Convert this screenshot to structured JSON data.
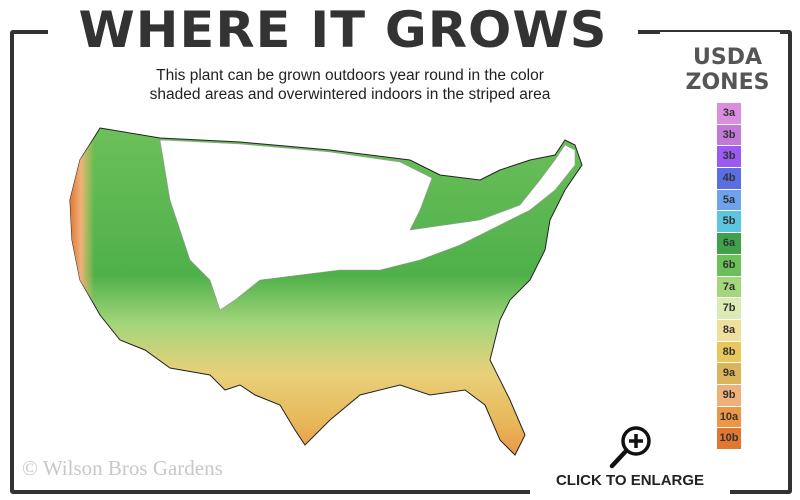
{
  "title": "WHERE IT GROWS",
  "subtitle_line1": "This plant can be grown outdoors year round in the color",
  "subtitle_line2": "shaded areas and overwintered indoors in the striped area",
  "legend": {
    "title_line1": "USDA",
    "title_line2": "ZONES",
    "zones": [
      {
        "label": "3a",
        "color": "#d98ee0"
      },
      {
        "label": "3b",
        "color": "#c27ad6"
      },
      {
        "label": "3b",
        "color": "#9a5cf0"
      },
      {
        "label": "4b",
        "color": "#5a6ee0"
      },
      {
        "label": "5a",
        "color": "#6fa2ee"
      },
      {
        "label": "5b",
        "color": "#5cc6e0"
      },
      {
        "label": "6a",
        "color": "#3fa24a"
      },
      {
        "label": "6b",
        "color": "#6cc05a"
      },
      {
        "label": "7a",
        "color": "#a4d67c"
      },
      {
        "label": "7b",
        "color": "#dcebb4"
      },
      {
        "label": "8a",
        "color": "#efe0a0"
      },
      {
        "label": "8b",
        "color": "#e8c85a"
      },
      {
        "label": "9a",
        "color": "#dcb45a"
      },
      {
        "label": "9b",
        "color": "#f0b07c"
      },
      {
        "label": "10a",
        "color": "#ec9646"
      },
      {
        "label": "10b",
        "color": "#e07830"
      }
    ]
  },
  "watermark": "© Wilson Bros Gardens",
  "enlarge_label": "CLICK TO ENLARGE",
  "enlarge_icon": "magnifier-plus-icon"
}
